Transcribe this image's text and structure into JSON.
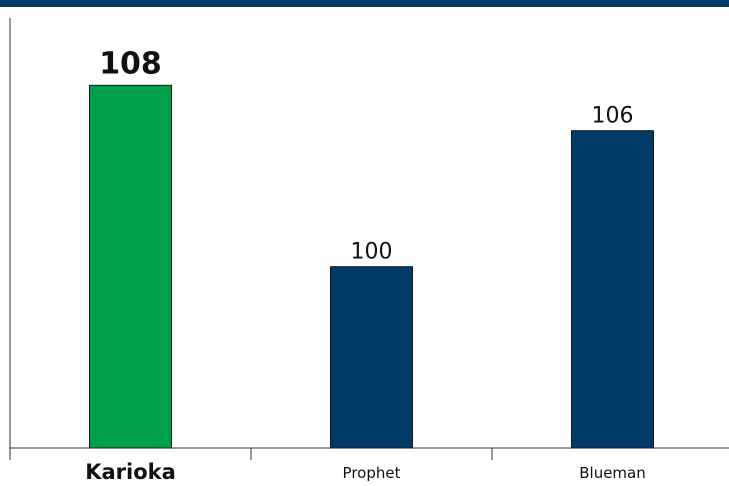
{
  "header_bar_color": "#033d66",
  "chart_data": {
    "type": "bar",
    "title": "",
    "xlabel": "",
    "ylabel": "",
    "categories": [
      "Karioka",
      "Prophet",
      "Blueman"
    ],
    "values": [
      108,
      100,
      106
    ],
    "value_labels": [
      "108",
      "100",
      "106"
    ],
    "highlighted_category": "Karioka",
    "bar_colors": [
      "#00a04b",
      "#003a66",
      "#003a66"
    ],
    "ylim": [
      92,
      110
    ],
    "grid": false,
    "legend": "none"
  }
}
